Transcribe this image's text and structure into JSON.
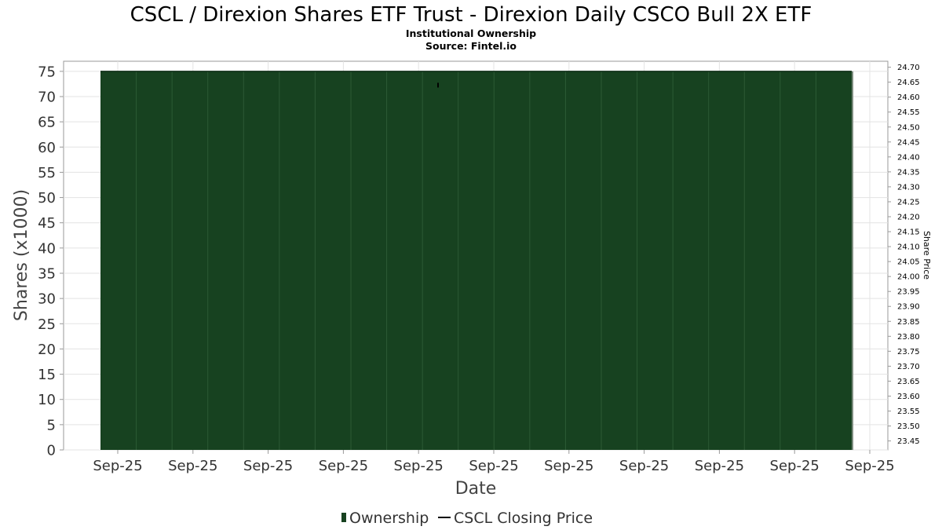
{
  "chart_data": {
    "type": "bar",
    "title": "CSCL / Direxion Shares ETF Trust - Direxion Daily CSCO Bull 2X ETF",
    "subtitle": "Institutional Ownership",
    "source": "Source: Fintel.io",
    "xlabel": "Date",
    "ylabel": "Shares (x1000)",
    "y2label": "Share Price",
    "ylim": [
      0,
      77
    ],
    "y_ticks": [
      0,
      5,
      10,
      15,
      20,
      25,
      30,
      35,
      40,
      45,
      50,
      55,
      60,
      65,
      70,
      75
    ],
    "y2lim": [
      23.42,
      24.72
    ],
    "y2_ticks": [
      "23.45",
      "23.50",
      "23.55",
      "23.60",
      "23.65",
      "23.70",
      "23.75",
      "23.80",
      "23.85",
      "23.90",
      "23.95",
      "24.00",
      "24.05",
      "24.10",
      "24.15",
      "24.20",
      "24.25",
      "24.30",
      "24.35",
      "24.40",
      "24.45",
      "24.50",
      "24.55",
      "24.60",
      "24.65",
      "24.70"
    ],
    "x_ticks": [
      "Sep-25",
      "Sep-25",
      "Sep-25",
      "Sep-25",
      "Sep-25",
      "Sep-25",
      "Sep-25",
      "Sep-25",
      "Sep-25",
      "Sep-25",
      "Sep-25"
    ],
    "series": [
      {
        "name": "Ownership",
        "type": "area",
        "color": "#174220",
        "values": [
          75,
          75,
          75,
          75,
          75,
          75,
          75,
          75,
          75,
          75,
          75,
          75,
          75,
          75,
          75,
          75,
          75,
          75,
          75,
          75,
          75
        ]
      },
      {
        "name": "CSCL Closing Price",
        "type": "line",
        "color": "#000000",
        "values": [
          24.64
        ]
      }
    ],
    "grid": true,
    "legend_position": "bottom"
  },
  "legend": [
    {
      "name": "Ownership",
      "color": "#174220",
      "marker": "bar"
    },
    {
      "name": "CSCL Closing Price",
      "color": "#000000",
      "marker": "line"
    }
  ]
}
